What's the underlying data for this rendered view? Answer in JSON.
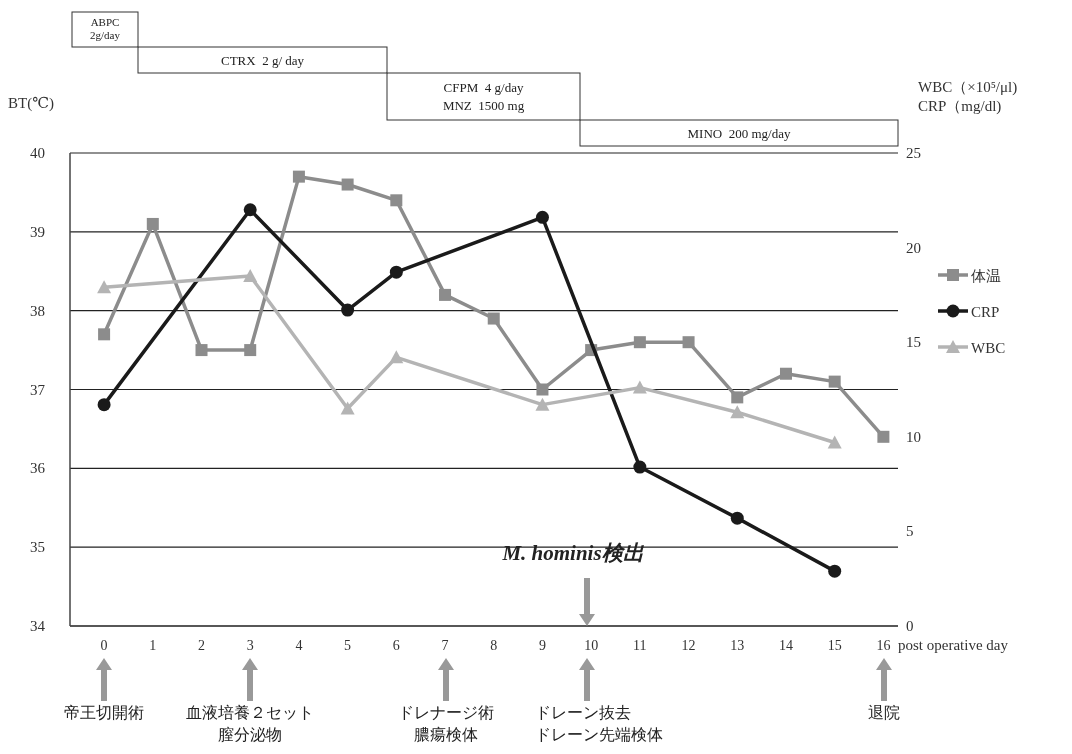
{
  "chart_data": {
    "type": "line",
    "x": [
      0,
      1,
      2,
      3,
      4,
      5,
      6,
      7,
      8,
      9,
      10,
      11,
      12,
      13,
      14,
      15,
      16
    ],
    "xlim": [
      -0.7,
      16.3
    ],
    "xticks": [
      0,
      1,
      2,
      3,
      4,
      5,
      6,
      7,
      8,
      9,
      10,
      11,
      12,
      13,
      14,
      15,
      16
    ],
    "xlabel": "post operative day",
    "ylabel": "BT(℃)",
    "y2label": "WBC（×10⁵/μl)\nCRP（mg/dl)",
    "ylim": [
      34,
      40
    ],
    "yticks": [
      34,
      35,
      36,
      37,
      38,
      39,
      40
    ],
    "y2lim": [
      0,
      25
    ],
    "y2ticks": [
      0,
      5,
      10,
      15,
      20,
      25
    ],
    "grid": "y",
    "legend": "right",
    "series": [
      {
        "name": "体温",
        "color": "#8c8c8c",
        "marker": "square",
        "values": [
          37.7,
          39.1,
          37.5,
          37.5,
          39.7,
          39.6,
          39.4,
          38.2,
          37.9,
          37.0,
          37.5,
          37.6,
          37.6,
          36.9,
          37.2,
          37.1,
          36.4
        ]
      },
      {
        "name": "CRP",
        "color": "#1a1a1a",
        "marker": "circle",
        "axis": "y2",
        "values": [
          11.7,
          null,
          null,
          22.0,
          null,
          16.7,
          18.7,
          null,
          null,
          21.6,
          null,
          8.4,
          null,
          5.7,
          null,
          2.9,
          null
        ]
      },
      {
        "name": "WBC",
        "color": "#b4b4b4",
        "marker": "triangle",
        "axis": "y2",
        "values": [
          17.9,
          null,
          null,
          18.5,
          null,
          11.5,
          14.2,
          null,
          null,
          11.7,
          null,
          12.6,
          null,
          11.3,
          null,
          9.7,
          null
        ]
      }
    ],
    "annotations": [
      "ABPC\n2g/day",
      "CTRX  2 g/ day",
      "CFPM  4 g/day\nMNZ  1500 mg",
      "MINO  200 mg/day",
      "M. hominis検出",
      "帝王切開術",
      "血液培養２セット",
      "膣分泌物",
      "ドレナージ術",
      "膿瘍検体",
      "ドレーン抜去",
      "ドレーン先端検体",
      "退院"
    ]
  }
}
